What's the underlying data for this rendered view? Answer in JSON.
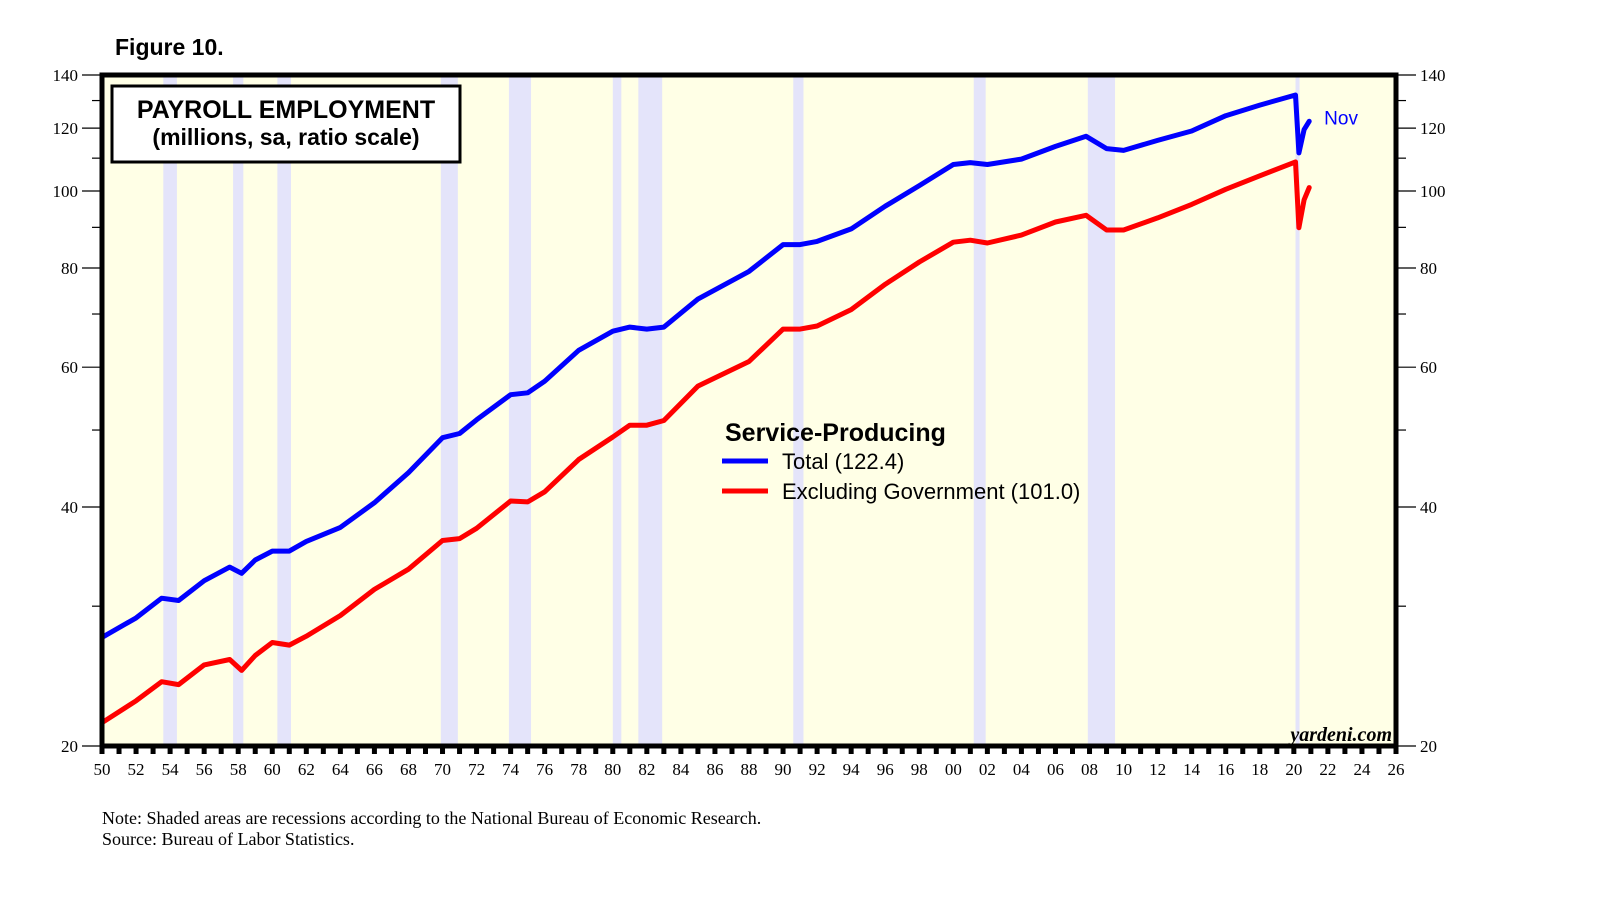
{
  "figure_label": "Figure 10.",
  "notes": {
    "note": "Note: Shaded areas are recessions according to the National Bureau of Economic Research.",
    "source": "Source: Bureau of Labor Statistics."
  },
  "chart_data": {
    "type": "line",
    "title": "PAYROLL EMPLOYMENT",
    "subtitle": "(millions, sa, ratio scale)",
    "xlabel": "",
    "ylabel": "",
    "y_scale": "log",
    "ylim": [
      20,
      140
    ],
    "xlim": [
      1950,
      2026
    ],
    "y_ticks": [
      20,
      40,
      60,
      80,
      100,
      120,
      140
    ],
    "y_minor_ticks": [
      30,
      50,
      70,
      90,
      110,
      130
    ],
    "x_tick_labels": [
      "50",
      "52",
      "54",
      "56",
      "58",
      "60",
      "62",
      "64",
      "66",
      "68",
      "70",
      "72",
      "74",
      "76",
      "78",
      "80",
      "82",
      "84",
      "86",
      "88",
      "90",
      "92",
      "94",
      "96",
      "98",
      "00",
      "02",
      "04",
      "06",
      "08",
      "10",
      "12",
      "14",
      "16",
      "18",
      "20",
      "22",
      "24",
      "26"
    ],
    "x_tick_years": [
      1950,
      1952,
      1954,
      1956,
      1958,
      1960,
      1962,
      1964,
      1966,
      1968,
      1970,
      1972,
      1974,
      1976,
      1978,
      1980,
      1982,
      1984,
      1986,
      1988,
      1990,
      1992,
      1994,
      1996,
      1998,
      2000,
      2002,
      2004,
      2006,
      2008,
      2010,
      2012,
      2014,
      2016,
      2018,
      2020,
      2022,
      2024,
      2026
    ],
    "grid": false,
    "legend": {
      "title": "Service-Producing",
      "position": "center",
      "entries": [
        "Total (122.4)",
        "Excluding Government (101.0)"
      ]
    },
    "end_label": "Nov",
    "watermark": "yardeni.com",
    "recessions": [
      [
        1953.6,
        1954.4
      ],
      [
        1957.7,
        1958.3
      ],
      [
        1960.3,
        1961.1
      ],
      [
        1969.9,
        1970.9
      ],
      [
        1973.9,
        1975.2
      ],
      [
        1980.0,
        1980.5
      ],
      [
        1981.5,
        1982.9
      ],
      [
        1990.6,
        1991.2
      ],
      [
        2001.2,
        2001.9
      ],
      [
        2007.9,
        2009.5
      ],
      [
        2020.1,
        2020.3
      ]
    ],
    "colors": {
      "plot_background": "#ffffe6",
      "recession_shade": "#e4e4fa",
      "total": "#0000ff",
      "excluding_government": "#ff0000"
    },
    "series": [
      {
        "name": "Total",
        "latest_value": 122.4,
        "x": [
          1950,
          1952,
          1953.5,
          1954.5,
          1956,
          1957.5,
          1958.2,
          1959,
          1960,
          1961,
          1962,
          1964,
          1966,
          1968,
          1970,
          1971,
          1972,
          1974,
          1975,
          1976,
          1978,
          1980,
          1981,
          1982,
          1983,
          1985,
          1988,
          1990,
          1991,
          1992,
          1994,
          1996,
          1998,
          2000,
          2001,
          2002,
          2004,
          2006,
          2007.8,
          2009,
          2010,
          2012,
          2014,
          2016,
          2018,
          2020.1,
          2020.3,
          2020.6,
          2020.9
        ],
        "values": [
          27.4,
          29.0,
          30.7,
          30.5,
          32.3,
          33.6,
          33.0,
          34.3,
          35.2,
          35.2,
          36.2,
          37.7,
          40.5,
          44.2,
          48.9,
          49.5,
          51.5,
          55.4,
          55.7,
          57.6,
          63.0,
          66.6,
          67.4,
          67.0,
          67.4,
          73.1,
          79.2,
          85.6,
          85.6,
          86.4,
          89.6,
          95.7,
          101.6,
          108.0,
          108.6,
          108.0,
          109.7,
          113.8,
          117.2,
          113.1,
          112.5,
          115.8,
          119.0,
          124.4,
          128.3,
          132.1,
          111.7,
          119.5,
          122.4
        ]
      },
      {
        "name": "Excluding Government",
        "latest_value": 101.0,
        "x": [
          1950,
          1952,
          1953.5,
          1954.5,
          1956,
          1957.5,
          1958.2,
          1959,
          1960,
          1961,
          1962,
          1964,
          1966,
          1968,
          1970,
          1971,
          1972,
          1974,
          1975,
          1976,
          1978,
          1980,
          1981,
          1982,
          1983,
          1985,
          1988,
          1990,
          1991,
          1992,
          1994,
          1996,
          1998,
          2000,
          2001,
          2002,
          2004,
          2006,
          2007.8,
          2009,
          2010,
          2012,
          2014,
          2016,
          2018,
          2020.1,
          2020.3,
          2020.6,
          2020.9
        ],
        "values": [
          21.4,
          22.8,
          24.1,
          23.9,
          25.3,
          25.7,
          24.9,
          26.0,
          27.0,
          26.8,
          27.5,
          29.2,
          31.5,
          33.4,
          36.3,
          36.5,
          37.6,
          40.7,
          40.6,
          41.8,
          45.9,
          49.0,
          50.7,
          50.7,
          51.4,
          56.8,
          61.0,
          67.0,
          67.0,
          67.6,
          70.9,
          76.3,
          81.4,
          86.2,
          86.7,
          86.0,
          88.0,
          91.4,
          93.2,
          89.3,
          89.3,
          92.5,
          96.2,
          100.5,
          104.5,
          108.8,
          89.9,
          97.5,
          101.0
        ]
      }
    ]
  }
}
